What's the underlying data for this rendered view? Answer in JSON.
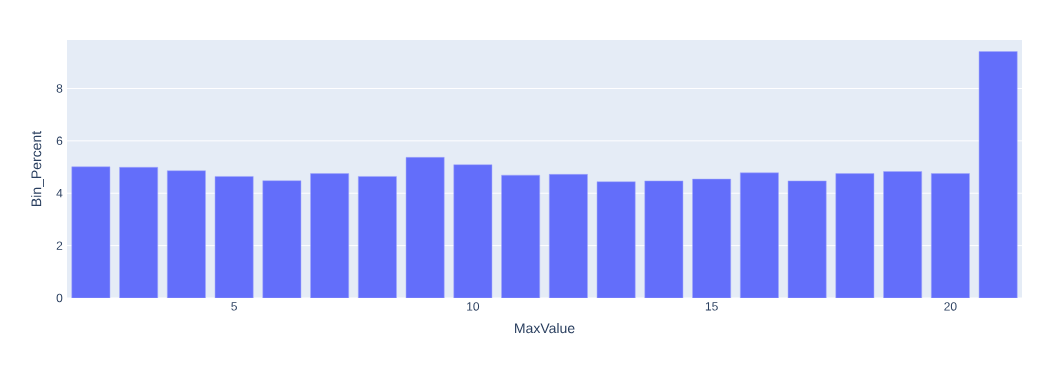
{
  "chart_data": {
    "type": "bar",
    "xlabel": "MaxValue",
    "ylabel": "Bin_Percent",
    "x": [
      2,
      3,
      4,
      5,
      6,
      7,
      8,
      9,
      10,
      11,
      12,
      13,
      14,
      15,
      16,
      17,
      18,
      19,
      20,
      21
    ],
    "values": [
      5.01,
      4.99,
      4.86,
      4.64,
      4.48,
      4.75,
      4.64,
      5.37,
      5.09,
      4.69,
      4.72,
      4.44,
      4.47,
      4.54,
      4.78,
      4.47,
      4.75,
      4.83,
      4.75,
      9.41
    ],
    "color": "#636efa",
    "xlim": [
      1.5,
      21.5
    ],
    "ylim": [
      0,
      9.85
    ],
    "xticks": [
      5,
      10,
      15,
      20
    ],
    "yticks": [
      0,
      2,
      4,
      6,
      8
    ],
    "grid": "y"
  }
}
